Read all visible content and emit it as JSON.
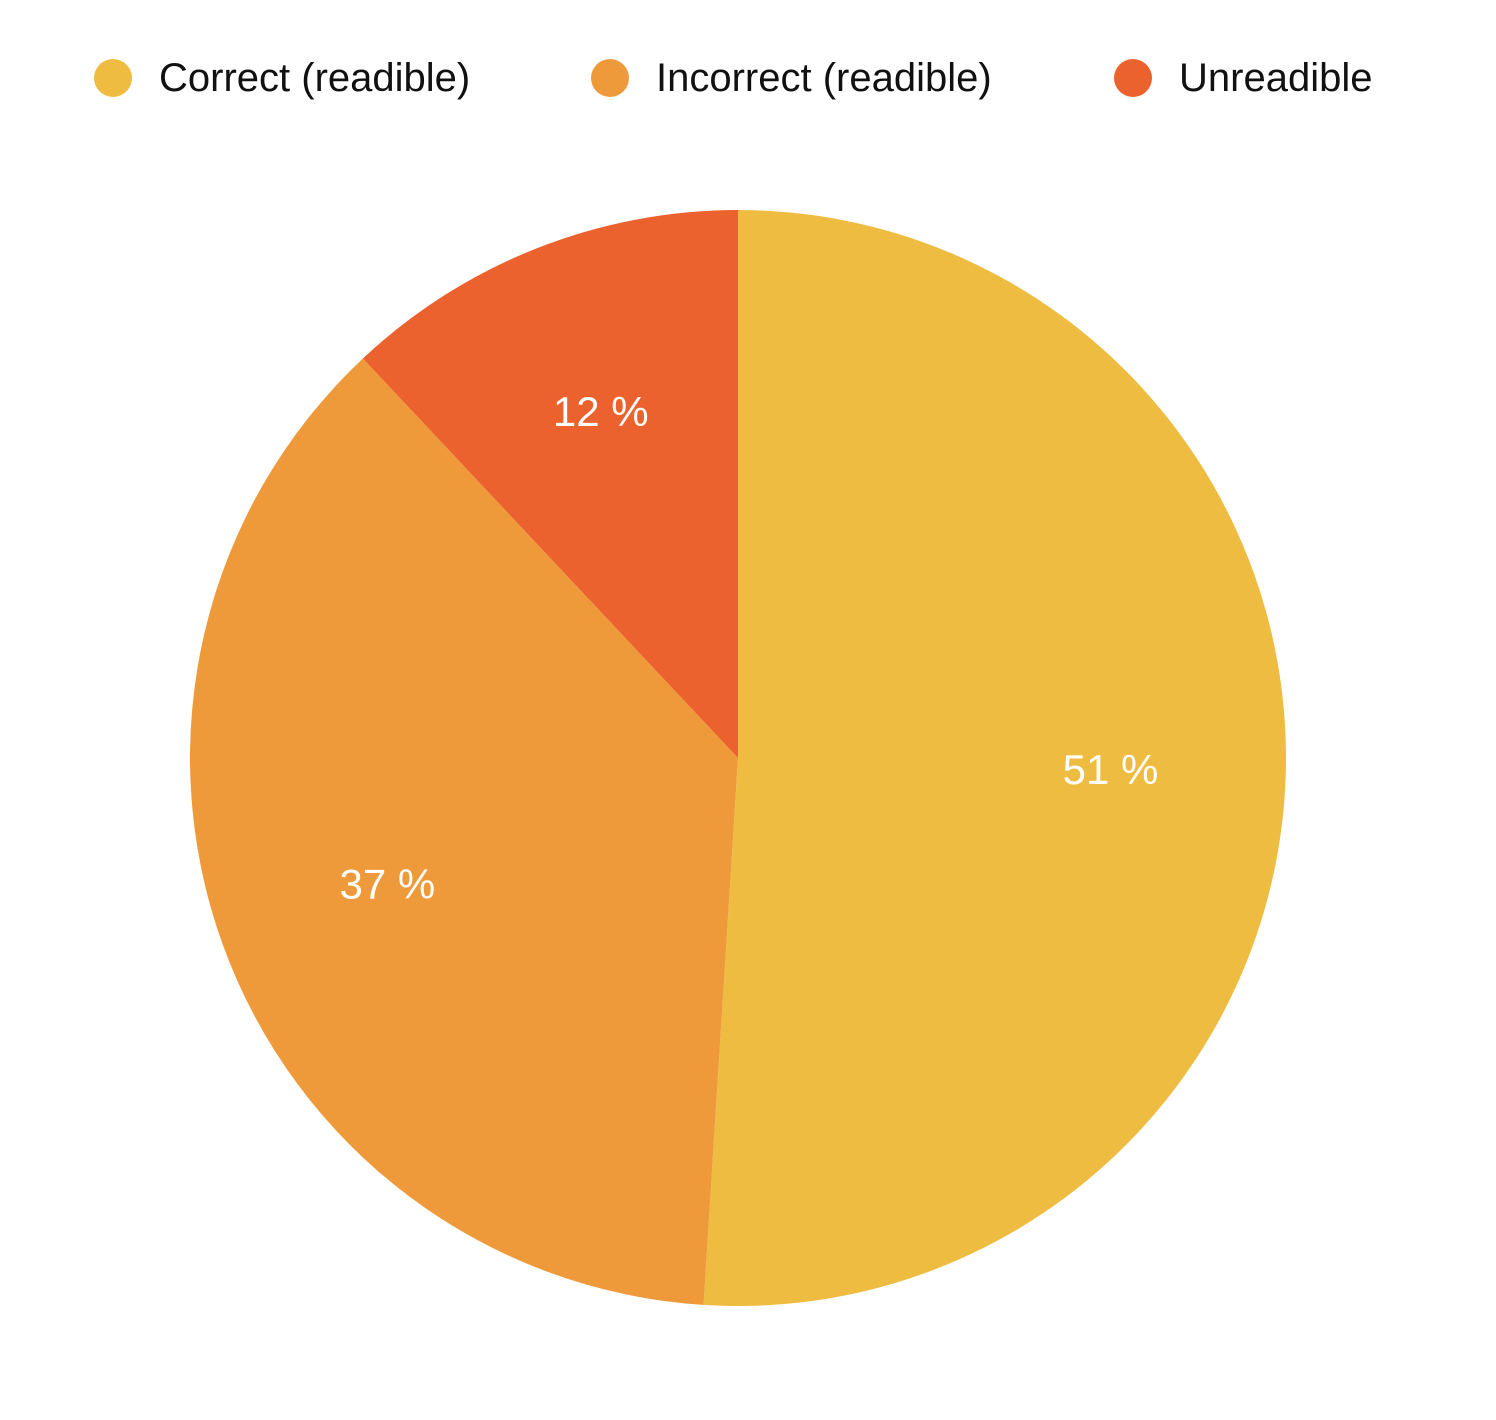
{
  "chart_data": {
    "type": "pie",
    "title": "",
    "legend_position": "top",
    "start_angle": "12 o'clock",
    "direction": "clockwise",
    "slices": [
      {
        "name": "Correct (readible)",
        "value": 51,
        "label": "51 %",
        "color": "#EFBC42"
      },
      {
        "name": "Incorrect (readible)",
        "value": 37,
        "label": "37 %",
        "color": "#EF9A3A"
      },
      {
        "name": "Unreadible",
        "value": 12,
        "label": "12 %",
        "color": "#EB622E"
      }
    ]
  }
}
